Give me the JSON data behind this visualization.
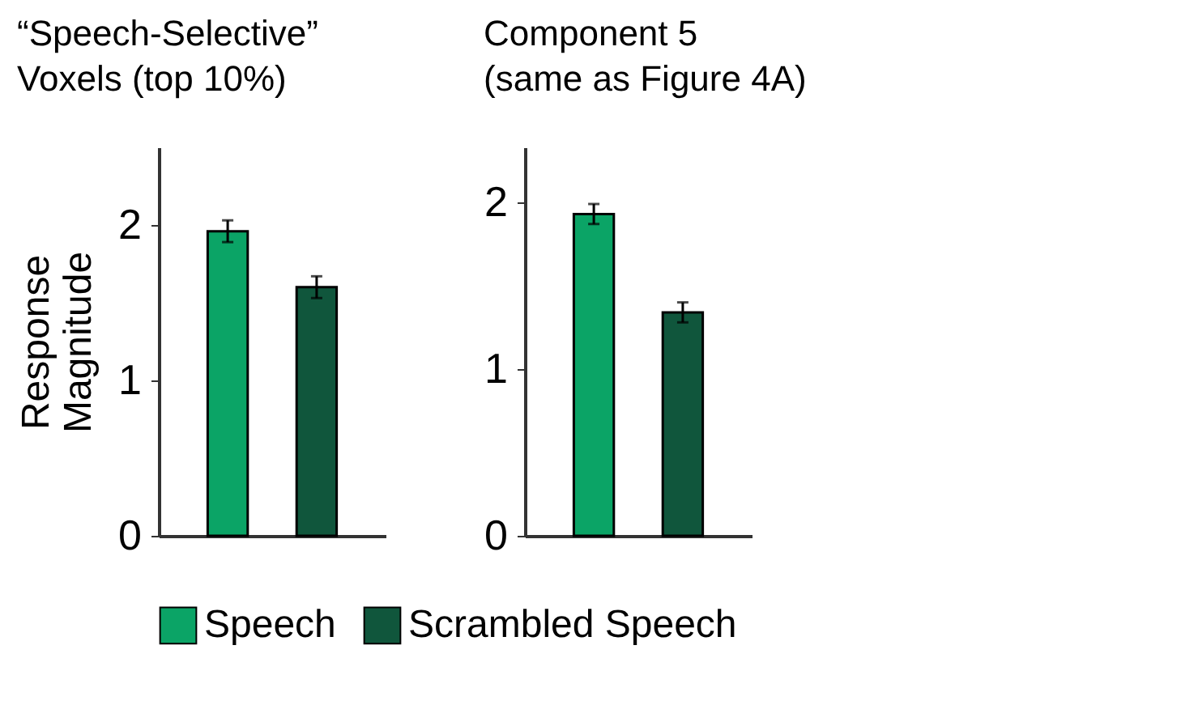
{
  "chart_data": [
    {
      "type": "bar",
      "title": "“Speech-Selective”\nVoxels (top 10%)",
      "ylabel": "Response\nMagnitude",
      "categories": [
        null
      ],
      "series": [
        {
          "name": "Speech",
          "color": "#0ba466",
          "values": [
            1.96
          ],
          "errors": [
            0.07
          ]
        },
        {
          "name": "Scrambled Speech",
          "color": "#10563c",
          "values": [
            1.6
          ],
          "errors": [
            0.07
          ]
        }
      ],
      "ylim": [
        0,
        2.5
      ],
      "yticks": [
        0,
        1,
        2
      ],
      "grid": false,
      "legend": "bottom",
      "tick_labels": "y"
    },
    {
      "type": "bar",
      "title": "Component 5\n(same as Figure 4A)",
      "categories": [
        null
      ],
      "series": [
        {
          "name": "Speech",
          "color": "#0ba466",
          "values": [
            1.93
          ],
          "errors": [
            0.06
          ]
        },
        {
          "name": "Scrambled Speech",
          "color": "#10563c",
          "values": [
            1.34
          ],
          "errors": [
            0.06
          ]
        }
      ],
      "ylim": [
        0,
        2.33
      ],
      "yticks": [
        0,
        1,
        2
      ],
      "grid": false,
      "tick_labels": "y"
    }
  ]
}
